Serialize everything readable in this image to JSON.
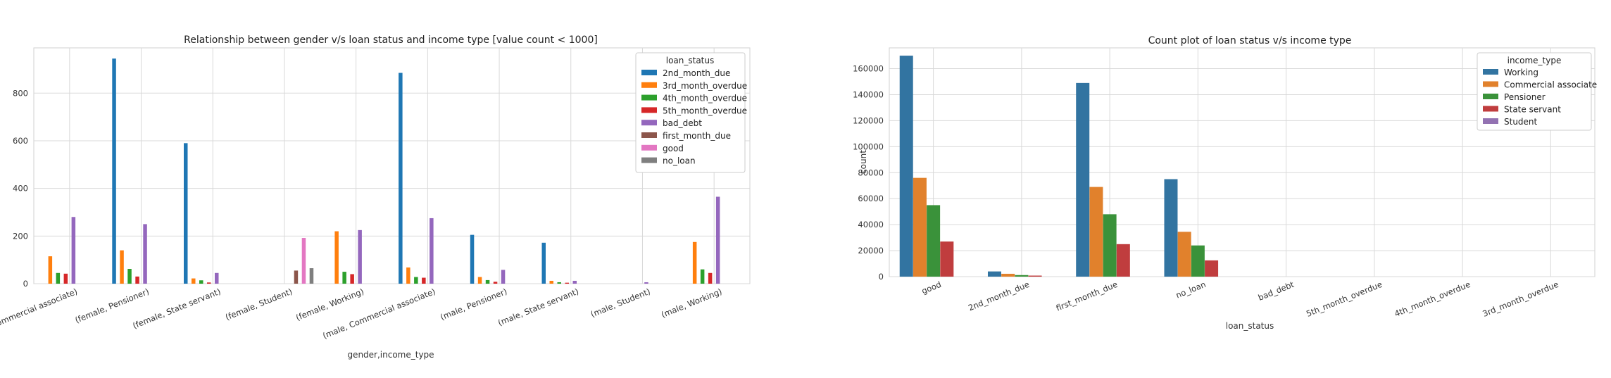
{
  "chart_data": [
    {
      "type": "bar",
      "title": "Relationship between gender v/s loan status and income type [value count < 1000]",
      "xlabel": "gender,income_type",
      "ylabel": "",
      "ylim": [
        0,
        990
      ],
      "yticks": [
        0,
        200,
        400,
        600,
        800
      ],
      "grid": true,
      "legend_title": "loan_status",
      "legend_position": "top-right",
      "categories": [
        "(female, Commercial associate)",
        "(female, Pensioner)",
        "(female, State servant)",
        "(female, Student)",
        "(female, Working)",
        "(male, Commercial associate)",
        "(male, Pensioner)",
        "(male, State servant)",
        "(male, Student)",
        "(male, Working)"
      ],
      "series": [
        {
          "name": "2nd_month_due",
          "color": "#1f77b4",
          "values": [
            0,
            945,
            590,
            0,
            0,
            885,
            205,
            172,
            0,
            0
          ]
        },
        {
          "name": "3rd_month_overdue",
          "color": "#ff7f0e",
          "values": [
            115,
            140,
            22,
            0,
            220,
            68,
            28,
            12,
            0,
            175
          ]
        },
        {
          "name": "4th_month_overdue",
          "color": "#2ca02c",
          "values": [
            45,
            62,
            14,
            0,
            50,
            28,
            15,
            6,
            0,
            60
          ]
        },
        {
          "name": "5th_month_overdue",
          "color": "#d62728",
          "values": [
            42,
            30,
            5,
            0,
            40,
            25,
            8,
            4,
            0,
            45
          ]
        },
        {
          "name": "bad_debt",
          "color": "#9467bd",
          "values": [
            280,
            250,
            45,
            0,
            225,
            275,
            58,
            12,
            6,
            365
          ]
        },
        {
          "name": "first_month_due",
          "color": "#8c564b",
          "values": [
            0,
            0,
            0,
            55,
            0,
            0,
            0,
            0,
            0,
            0
          ]
        },
        {
          "name": "good",
          "color": "#e377c2",
          "values": [
            0,
            0,
            0,
            192,
            0,
            0,
            0,
            0,
            0,
            0
          ]
        },
        {
          "name": "no_loan",
          "color": "#7f7f7f",
          "values": [
            0,
            0,
            0,
            65,
            0,
            0,
            0,
            0,
            0,
            0
          ]
        }
      ]
    },
    {
      "type": "bar",
      "title": "Count plot of loan status v/s income type",
      "xlabel": "loan_status",
      "ylabel": "count",
      "ylim": [
        0,
        176000
      ],
      "yticks": [
        0,
        20000,
        40000,
        60000,
        80000,
        100000,
        120000,
        140000,
        160000
      ],
      "grid": true,
      "legend_title": "income_type",
      "legend_position": "top-right",
      "categories": [
        "good",
        "2nd_month_due",
        "first_month_due",
        "no_loan",
        "bad_debt",
        "5th_month_overdue",
        "4th_month_overdue",
        "3rd_month_overdue"
      ],
      "series": [
        {
          "name": "Working",
          "color": "#3274a1",
          "values": [
            170000,
            4000,
            149000,
            75000,
            0,
            0,
            0,
            0
          ]
        },
        {
          "name": "Commercial associate",
          "color": "#e1812c",
          "values": [
            76000,
            2200,
            69000,
            34500,
            0,
            0,
            0,
            0
          ]
        },
        {
          "name": "Pensioner",
          "color": "#3a923a",
          "values": [
            55000,
            1200,
            48000,
            24000,
            0,
            0,
            0,
            0
          ]
        },
        {
          "name": "State servant",
          "color": "#c03d3e",
          "values": [
            27000,
            800,
            25000,
            12500,
            0,
            0,
            0,
            0
          ]
        },
        {
          "name": "Student",
          "color": "#9372b2",
          "values": [
            0,
            0,
            0,
            0,
            0,
            0,
            0,
            0
          ]
        }
      ]
    }
  ]
}
